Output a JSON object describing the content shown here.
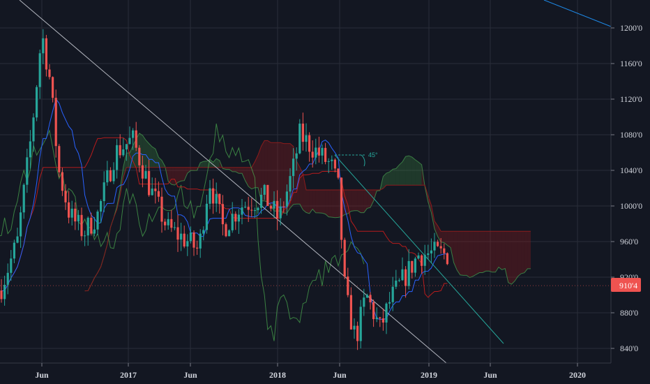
{
  "chart_data": {
    "type": "candlestick",
    "price_scale": {
      "ticks": [
        "1200'0",
        "1160'0",
        "1120'0",
        "1080'0",
        "1040'0",
        "1000'0",
        "960'0",
        "920'0",
        "880'0",
        "840'0"
      ],
      "tick_values": [
        1200,
        1160,
        1120,
        1080,
        1040,
        1000,
        960,
        920,
        880,
        840
      ],
      "range": [
        830,
        1230
      ]
    },
    "time_scale": {
      "labels": [
        "Jun",
        "2017",
        "Jun",
        "2018",
        "Jun",
        "2019",
        "Jun",
        "2020"
      ],
      "label_dates": [
        "2016-06",
        "2017-01",
        "2017-06",
        "2018-01",
        "2018-06",
        "2019-01",
        "2019-06",
        "2020-01"
      ],
      "range": [
        "2016-01",
        "2020-03"
      ]
    },
    "current_price": {
      "label": "910'4",
      "value": 910.5
    },
    "annotation": {
      "text": "45°"
    },
    "colors": {
      "background": "#131722",
      "grid": "#2a2e39",
      "up": "#26a69a",
      "down": "#ef5350",
      "badge": "#ef5350",
      "tenkan": "#2962ff",
      "kijun": "#b71c1c",
      "lagging": "#4caf50",
      "cloud_bull": "rgba(67,160,71,0.25)",
      "cloud_bear": "rgba(183,28,28,0.25)",
      "trendline_main": "#b2b5be",
      "trendline_teal": "#26a69a"
    },
    "grid": true
  }
}
